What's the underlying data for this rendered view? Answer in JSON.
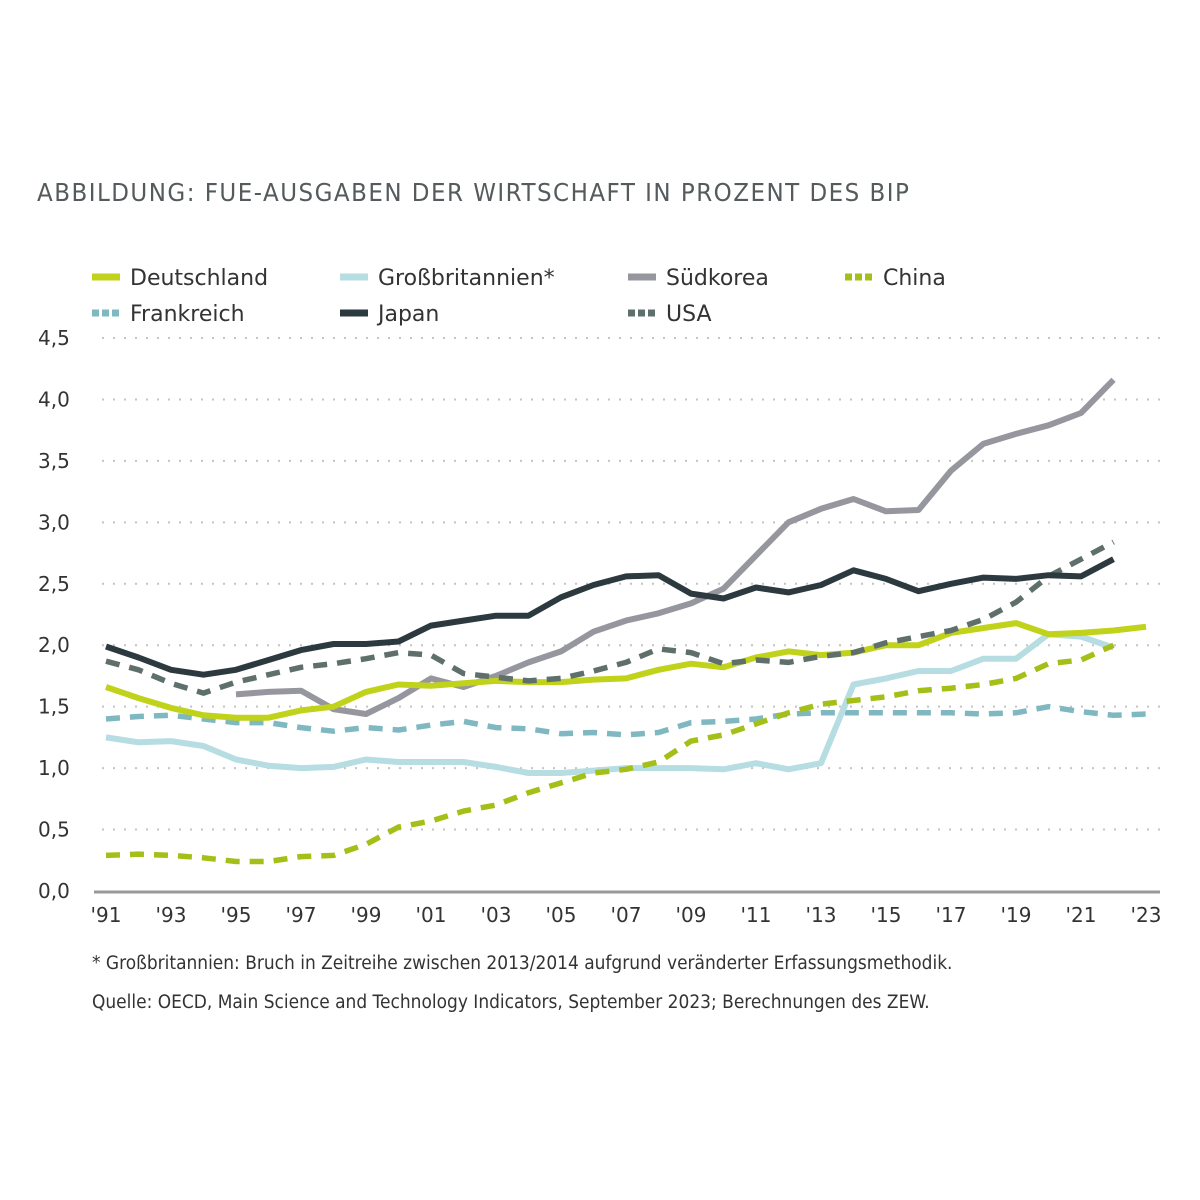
{
  "chart_data": {
    "type": "line",
    "title": "ABBILDUNG: FUE-AUSGABEN DER WIRTSCHAFT IN PROZENT DES BIP",
    "xlabel": "",
    "ylabel": "",
    "x_range": [
      1991,
      2023
    ],
    "ylim": [
      0,
      4.5
    ],
    "y_ticks": [
      0,
      0.5,
      1.0,
      1.5,
      2.0,
      2.5,
      3.0,
      3.5,
      4.0,
      4.5
    ],
    "y_tick_labels": [
      "0,0",
      "0,5",
      "1,0",
      "1,5",
      "2,0",
      "2,5",
      "3,0",
      "3,5",
      "4,0",
      "4,5"
    ],
    "x_ticks": [
      1991,
      1993,
      1995,
      1997,
      1999,
      2001,
      2003,
      2005,
      2007,
      2009,
      2011,
      2013,
      2015,
      2017,
      2019,
      2021,
      2023
    ],
    "x_tick_labels": [
      "'91",
      "'93",
      "'95",
      "'97",
      "'99",
      "'01",
      "'03",
      "'05",
      "'07",
      "'09",
      "'11",
      "'13",
      "'15",
      "'17",
      "'19",
      "'21",
      "'23"
    ],
    "grid": "horizontal-dotted",
    "legend_position": "top",
    "series": [
      {
        "name": "Deutschland",
        "color": "#c1d21a",
        "dashed": false,
        "start": 1991,
        "values": [
          1.66,
          1.57,
          1.49,
          1.43,
          1.41,
          1.41,
          1.47,
          1.5,
          1.62,
          1.68,
          1.67,
          1.69,
          1.71,
          1.7,
          1.7,
          1.72,
          1.73,
          1.8,
          1.85,
          1.82,
          1.9,
          1.95,
          1.92,
          1.94,
          2.0,
          2.0,
          2.1,
          2.14,
          2.18,
          2.09,
          2.1,
          2.12,
          2.15
        ]
      },
      {
        "name": "Großbritannien*",
        "color": "#b5dde2",
        "dashed": false,
        "start": 1991,
        "values": [
          1.25,
          1.21,
          1.22,
          1.18,
          1.07,
          1.02,
          1.0,
          1.01,
          1.07,
          1.05,
          1.05,
          1.05,
          1.01,
          0.96,
          0.96,
          0.98,
          1.0,
          1.0,
          1.0,
          0.99,
          1.04,
          0.99,
          1.04,
          1.68,
          1.73,
          1.79,
          1.79,
          1.89,
          1.89,
          2.09,
          2.07,
          1.98
        ]
      },
      {
        "name": "Südkorea",
        "color": "#96969e",
        "dashed": false,
        "start": 1995,
        "values": [
          1.6,
          1.62,
          1.63,
          1.48,
          1.44,
          1.57,
          1.73,
          1.66,
          1.75,
          1.86,
          1.95,
          2.11,
          2.2,
          2.26,
          2.34,
          2.46,
          2.73,
          3.0,
          3.11,
          3.19,
          3.09,
          3.1,
          3.42,
          3.64,
          3.72,
          3.79,
          3.89,
          4.16
        ]
      },
      {
        "name": "China",
        "color": "#a4bf17",
        "dashed": true,
        "start": 1991,
        "values": [
          0.29,
          0.3,
          0.29,
          0.27,
          0.24,
          0.24,
          0.28,
          0.29,
          0.38,
          0.52,
          0.57,
          0.65,
          0.7,
          0.8,
          0.88,
          0.96,
          0.99,
          1.05,
          1.22,
          1.27,
          1.36,
          1.45,
          1.52,
          1.55,
          1.58,
          1.63,
          1.65,
          1.68,
          1.73,
          1.85,
          1.88,
          2.0
        ]
      },
      {
        "name": "Frankreich",
        "color": "#7fb8c0",
        "dashed": true,
        "start": 1991,
        "values": [
          1.4,
          1.42,
          1.43,
          1.4,
          1.37,
          1.37,
          1.33,
          1.3,
          1.33,
          1.31,
          1.35,
          1.38,
          1.33,
          1.32,
          1.28,
          1.29,
          1.27,
          1.29,
          1.37,
          1.38,
          1.4,
          1.44,
          1.45,
          1.45,
          1.45,
          1.45,
          1.45,
          1.44,
          1.45,
          1.5,
          1.46,
          1.43,
          1.44
        ]
      },
      {
        "name": "Japan",
        "color": "#2c3a40",
        "dashed": false,
        "start": 1991,
        "values": [
          1.99,
          1.9,
          1.8,
          1.76,
          1.8,
          1.88,
          1.96,
          2.01,
          2.01,
          2.03,
          2.16,
          2.2,
          2.24,
          2.24,
          2.39,
          2.49,
          2.56,
          2.57,
          2.42,
          2.38,
          2.47,
          2.43,
          2.49,
          2.61,
          2.54,
          2.44,
          2.5,
          2.55,
          2.54,
          2.57,
          2.56,
          2.7
        ]
      },
      {
        "name": "USA",
        "color": "#5f706c",
        "dashed": true,
        "start": 1991,
        "values": [
          1.87,
          1.8,
          1.69,
          1.61,
          1.7,
          1.76,
          1.82,
          1.85,
          1.89,
          1.94,
          1.92,
          1.77,
          1.74,
          1.71,
          1.73,
          1.79,
          1.86,
          1.97,
          1.94,
          1.85,
          1.88,
          1.86,
          1.91,
          1.94,
          2.02,
          2.07,
          2.12,
          2.21,
          2.35,
          2.56,
          2.7,
          2.84
        ]
      }
    ],
    "legend_order": [
      "Deutschland",
      "Großbritannien*",
      "Südkorea",
      "China",
      "Frankreich",
      "Japan",
      "USA"
    ],
    "footnote": "* Großbritannien: Bruch in Zeitreihe zwischen 2013/2014 aufgrund veränderter Erfassungsmethodik.",
    "source": "Quelle: OECD, Main Science and Technology Indicators, September 2023; Berechnungen des ZEW."
  }
}
